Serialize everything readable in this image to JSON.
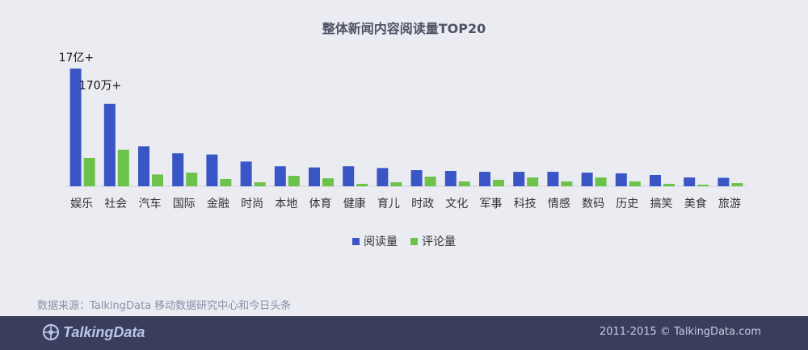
{
  "chart_data": {
    "type": "bar",
    "title": "整体新闻内容阅读量TOP20",
    "categories": [
      "娱乐",
      "社会",
      "汽车",
      "国际",
      "金融",
      "时尚",
      "本地",
      "体育",
      "健康",
      "育儿",
      "时政",
      "文化",
      "军事",
      "科技",
      "情感",
      "数码",
      "历史",
      "搞笑",
      "美食",
      "旅游"
    ],
    "series": [
      {
        "name": "阅读量",
        "color": "#3a56c6",
        "values": [
          100,
          70,
          34,
          28,
          27,
          21,
          17,
          16,
          17,
          15.5,
          13.7,
          13,
          12.3,
          12.3,
          12.3,
          11.6,
          11,
          9.6,
          7.5,
          7.2
        ]
      },
      {
        "name": "评论量",
        "color": "#6cc24a",
        "values": [
          24,
          31,
          10,
          11.6,
          6.2,
          3.4,
          8.9,
          6.8,
          2.1,
          3.4,
          8.2,
          4.1,
          5.5,
          7.5,
          4.1,
          7.5,
          4.1,
          2.1,
          1.4,
          2.7
        ]
      }
    ],
    "ylim": [
      0,
      100
    ],
    "legend_position": "bottom-center",
    "annotations": [
      {
        "text": "17亿+",
        "category": "娱乐",
        "series": "阅读量"
      },
      {
        "text": "170万+",
        "category": "社会",
        "series": "评论量"
      }
    ]
  },
  "source_text": "数据来源：TalkingData 移动数据研究中心和今日头条",
  "footer": {
    "logo_text": "TalkingData",
    "logo_icon": "talkingdata-logo-icon",
    "copyright": "2011-2015 © TalkingData.com"
  }
}
